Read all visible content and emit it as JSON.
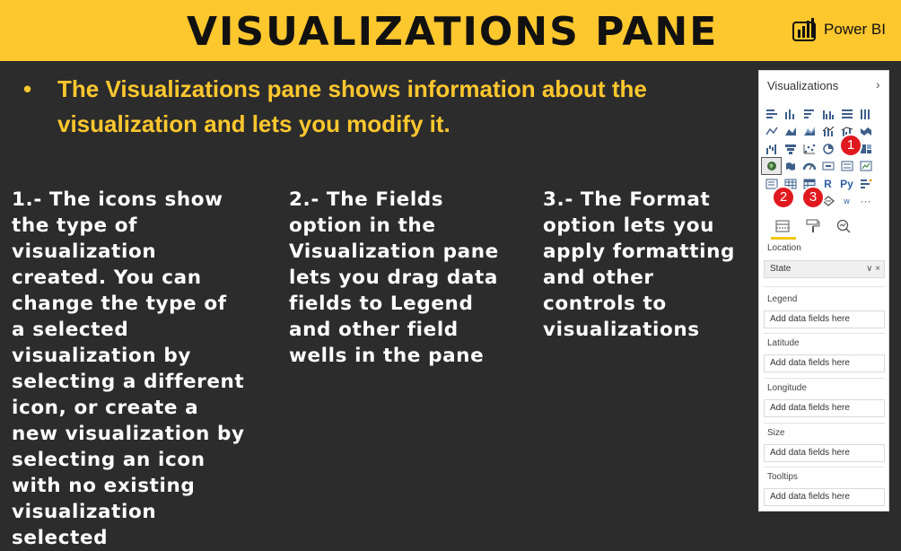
{
  "banner": {
    "title": "VISUALIZATIONS PANE",
    "brand": "Power BI",
    "background": "#fdc72e"
  },
  "intro": {
    "bullet": "•",
    "text": "The Visualizations pane shows information about the visualization and lets you modify it."
  },
  "columns": [
    {
      "text": "1.- The icons show the type of visualization created. You can change the type of a selected visualization by selecting a different icon, or create a new visualization by selecting an icon with no existing visualization selected"
    },
    {
      "text": "2.- The Fields option in the Visualization pane lets you drag data fields to Legend and other field wells in the pane"
    },
    {
      "text": "3.- The Format option lets you apply formatting and other controls to visualizations"
    }
  ],
  "pane": {
    "title": "Visualizations",
    "collapse_icon": "chevron-right-icon",
    "badges": [
      "1",
      "2",
      "3"
    ],
    "icon_rows": [
      [
        "stacked-bar-chart-icon",
        "stacked-column-chart-icon",
        "clustered-bar-chart-icon",
        "clustered-column-chart-icon",
        "100-stacked-bar-chart-icon",
        "100-stacked-column-chart-icon"
      ],
      [
        "line-chart-icon",
        "area-chart-icon",
        "stacked-area-chart-icon",
        "line-and-column-chart-icon",
        "line-and-clustered-column-chart-icon",
        "ribbon-chart-icon"
      ],
      [
        "waterfall-chart-icon",
        "funnel-icon",
        "scatter-chart-icon",
        "pie-chart-icon",
        "donut-chart-icon",
        "treemap-icon"
      ],
      [
        "map-icon",
        "filled-map-icon",
        "gauge-icon",
        "card-icon",
        "multi-row-card-icon",
        "kpi-icon"
      ],
      [
        "slicer-icon",
        "table-icon",
        "matrix-icon",
        "r-visual-icon",
        "python-visual-icon",
        "key-influencers-icon"
      ],
      [
        "decomposition-tree-icon",
        "qna-icon",
        "shape-map-icon",
        "word-cloud-icon",
        "ellipsis-icon"
      ]
    ],
    "icon_glyphs": {
      "r": "R",
      "py": "Py",
      "w": "w",
      "more": "···"
    },
    "tabs": [
      "fields-icon",
      "format-paintroller-icon",
      "analytics-icon"
    ],
    "wells": [
      {
        "label": "Location",
        "value": "State",
        "filled": true
      },
      {
        "label": "Legend",
        "value": "Add data fields here",
        "filled": false
      },
      {
        "label": "Latitude",
        "value": "Add data fields here",
        "filled": false
      },
      {
        "label": "Longitude",
        "value": "Add data fields here",
        "filled": false
      },
      {
        "label": "Size",
        "value": "Add data fields here",
        "filled": false
      },
      {
        "label": "Tooltips",
        "value": "Add data fields here",
        "filled": false
      }
    ],
    "well_controls": "∨ ×",
    "accent": "#f2c811",
    "badge_color": "#e0191f"
  }
}
